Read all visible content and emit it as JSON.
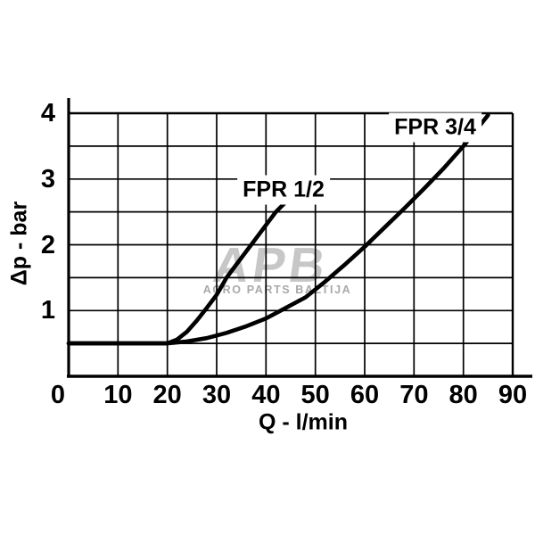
{
  "watermark": {
    "logo_text": "APB",
    "subtitle": "AGRO PARTS BALTIJA"
  },
  "colors": {
    "background": "#ffffff",
    "line": "#000000",
    "grid": "#000000",
    "text": "#000000",
    "watermark_logo": "#c7c7c7",
    "watermark_subtitle": "#a8a8a8"
  },
  "chart_data": {
    "type": "line",
    "title": "",
    "xlabel": "Q - l/min",
    "ylabel": "Δp - bar",
    "xlim": [
      0,
      90
    ],
    "ylim": [
      0,
      4
    ],
    "x_ticks": [
      0,
      10,
      20,
      30,
      40,
      50,
      60,
      70,
      80,
      90
    ],
    "y_ticks": [
      1,
      2,
      3,
      4
    ],
    "x_grid_step": 10,
    "y_grid_step": 0.5,
    "grid": true,
    "legend_position": "inline labels on plot",
    "series": [
      {
        "name": "FPR 1/2",
        "x": [
          0,
          5,
          10,
          15,
          20,
          22,
          24,
          26,
          28,
          30,
          32,
          34,
          36,
          38,
          40,
          42,
          44
        ],
        "y": [
          0.5,
          0.5,
          0.5,
          0.5,
          0.5,
          0.56,
          0.68,
          0.85,
          1.04,
          1.24,
          1.5,
          1.7,
          1.9,
          2.1,
          2.3,
          2.5,
          2.65
        ]
      },
      {
        "name": "FPR 3/4",
        "x": [
          0,
          5,
          10,
          15,
          20,
          24,
          28,
          32,
          36,
          40,
          44,
          48,
          52,
          56,
          60,
          64,
          68,
          72,
          76,
          80,
          85
        ],
        "y": [
          0.5,
          0.5,
          0.5,
          0.5,
          0.5,
          0.53,
          0.58,
          0.66,
          0.76,
          0.88,
          1.04,
          1.2,
          1.44,
          1.7,
          1.97,
          2.26,
          2.55,
          2.85,
          3.16,
          3.5,
          3.97
        ]
      }
    ]
  }
}
